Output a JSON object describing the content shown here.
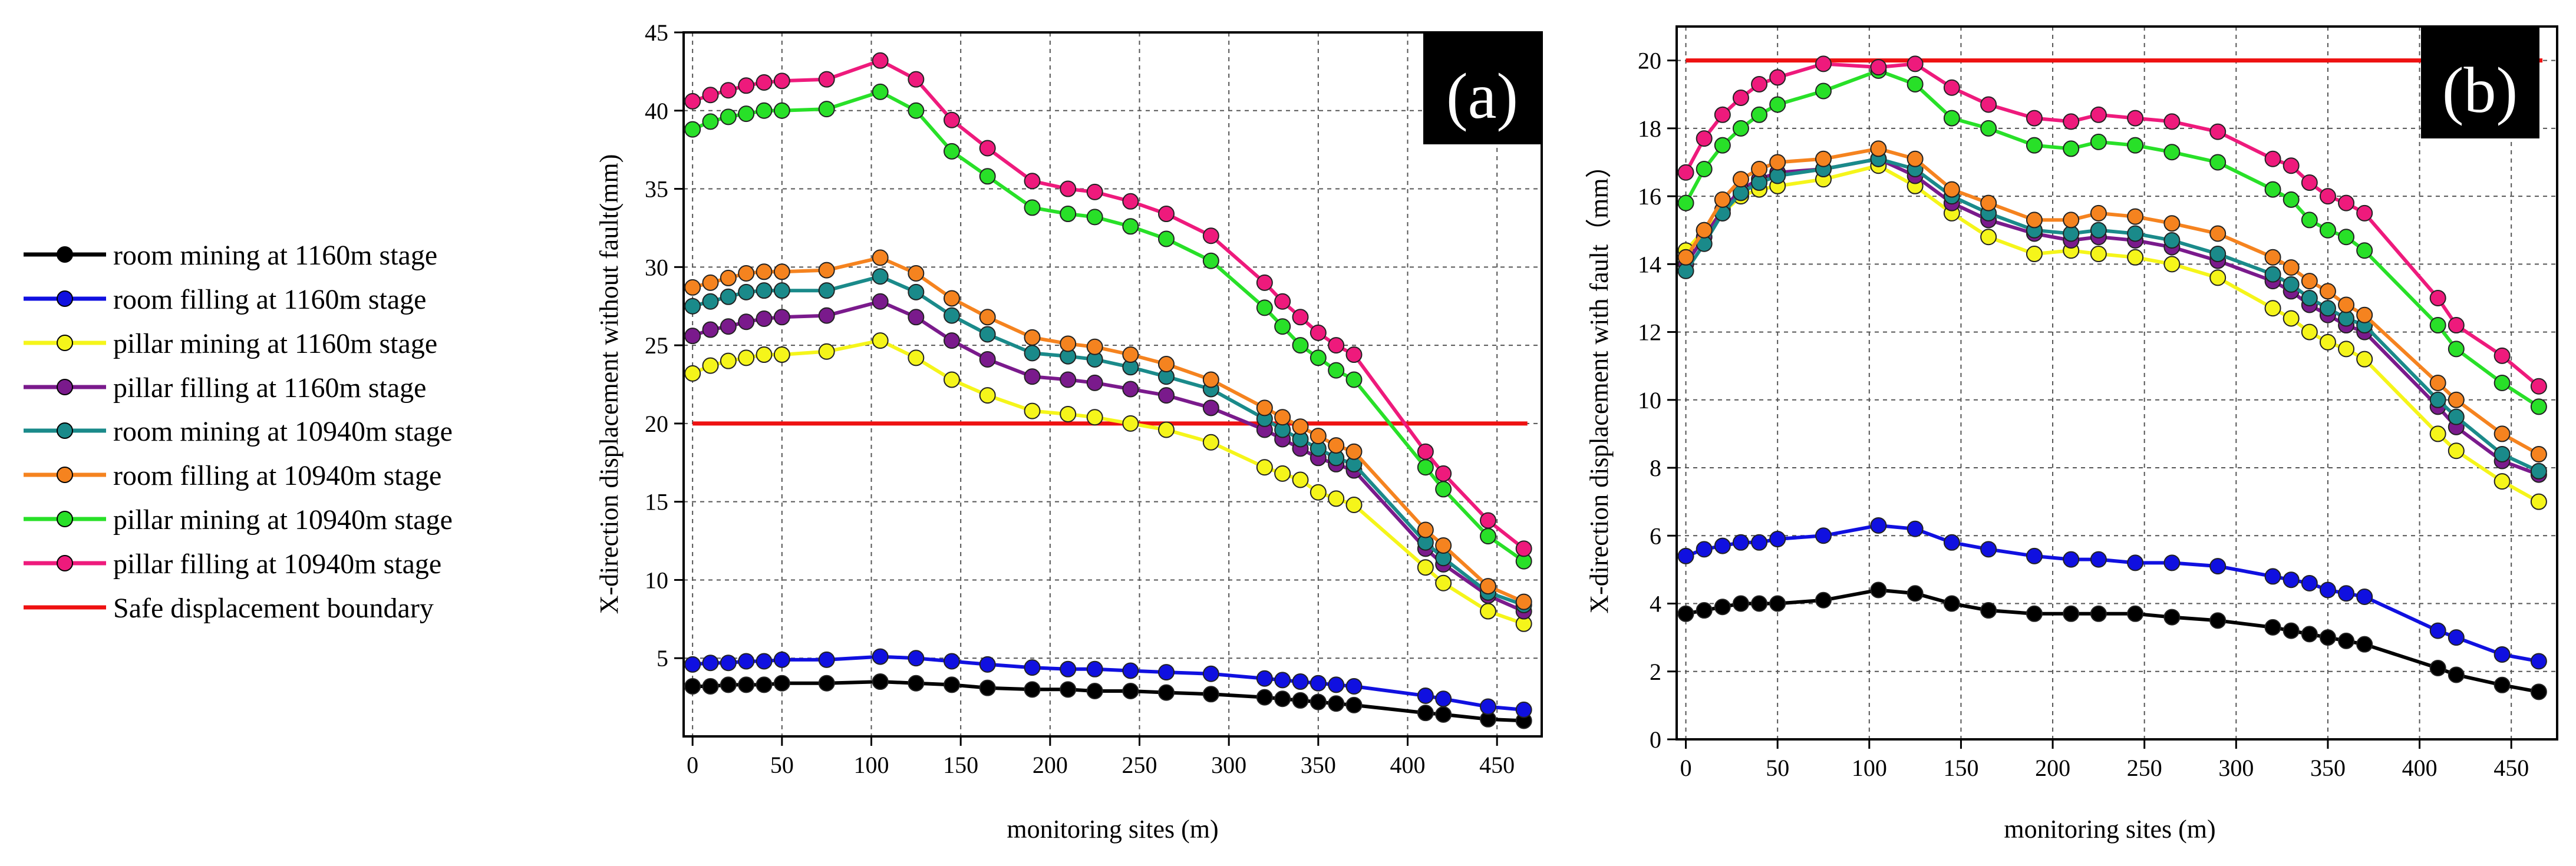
{
  "chart_data": [
    {
      "type": "line",
      "panel": "(a)",
      "xlabel": "monitoring sites (m)",
      "ylabel": "X-direction displacement without fault(mm)",
      "xlim": [
        -5,
        475
      ],
      "ylim": [
        0,
        45
      ],
      "xticks": [
        0,
        50,
        100,
        150,
        200,
        250,
        300,
        350,
        400,
        450
      ],
      "yticks": [
        5,
        10,
        15,
        20,
        25,
        30,
        35,
        40,
        45
      ],
      "grid": true,
      "x": [
        0,
        10,
        20,
        30,
        40,
        50,
        75,
        105,
        125,
        145,
        165,
        190,
        210,
        225,
        245,
        265,
        290,
        320,
        330,
        340,
        350,
        360,
        370,
        410,
        420,
        445,
        465
      ],
      "series": [
        {
          "name": "room mining at 1160m stage",
          "color": "#000000",
          "values": [
            3.2,
            3.2,
            3.3,
            3.3,
            3.3,
            3.4,
            3.4,
            3.5,
            3.4,
            3.3,
            3.1,
            3.0,
            3.0,
            2.9,
            2.9,
            2.8,
            2.7,
            2.5,
            2.4,
            2.3,
            2.2,
            2.1,
            2.0,
            1.5,
            1.4,
            1.1,
            1.0
          ]
        },
        {
          "name": "room filling at 1160m stage",
          "color": "#1010e0",
          "values": [
            4.6,
            4.7,
            4.7,
            4.8,
            4.8,
            4.9,
            4.9,
            5.1,
            5.0,
            4.8,
            4.6,
            4.4,
            4.3,
            4.3,
            4.2,
            4.1,
            4.0,
            3.7,
            3.6,
            3.5,
            3.4,
            3.3,
            3.2,
            2.6,
            2.4,
            1.9,
            1.7
          ]
        },
        {
          "name": "pillar mining at 1160m stage",
          "color": "#f5f51a",
          "values": [
            23.2,
            23.7,
            24.0,
            24.2,
            24.4,
            24.4,
            24.6,
            25.3,
            24.2,
            22.8,
            21.8,
            20.8,
            20.6,
            20.4,
            20.0,
            19.6,
            18.8,
            17.2,
            16.8,
            16.4,
            15.6,
            15.2,
            14.8,
            10.8,
            9.8,
            8.0,
            7.2
          ]
        },
        {
          "name": "pillar filling at 1160m stage",
          "color": "#7a1a8c",
          "values": [
            25.6,
            26.0,
            26.2,
            26.5,
            26.7,
            26.8,
            26.9,
            27.8,
            26.8,
            25.3,
            24.1,
            23.0,
            22.8,
            22.6,
            22.2,
            21.8,
            21.0,
            19.6,
            19.0,
            18.4,
            17.8,
            17.4,
            17.0,
            12.0,
            11.0,
            9.0,
            8.0
          ]
        },
        {
          "name": "room mining at 10940m stage",
          "color": "#1a8a8a",
          "values": [
            27.5,
            27.8,
            28.1,
            28.4,
            28.5,
            28.5,
            28.5,
            29.4,
            28.4,
            26.9,
            25.7,
            24.5,
            24.3,
            24.1,
            23.6,
            23.0,
            22.2,
            20.3,
            19.6,
            19.0,
            18.4,
            17.8,
            17.4,
            12.4,
            11.4,
            9.2,
            8.4
          ]
        },
        {
          "name": "room filling at 10940m stage",
          "color": "#f5831f",
          "values": [
            28.7,
            29.0,
            29.3,
            29.6,
            29.7,
            29.7,
            29.8,
            30.6,
            29.6,
            28.0,
            26.8,
            25.5,
            25.1,
            24.9,
            24.4,
            23.8,
            22.8,
            21.0,
            20.4,
            19.8,
            19.2,
            18.6,
            18.2,
            13.2,
            12.2,
            9.6,
            8.6
          ]
        },
        {
          "name": "pillar mining at 10940m stage",
          "color": "#28e028",
          "values": [
            38.8,
            39.3,
            39.6,
            39.8,
            40.0,
            40.0,
            40.1,
            41.2,
            40.0,
            37.4,
            35.8,
            33.8,
            33.4,
            33.2,
            32.6,
            31.8,
            30.4,
            27.4,
            26.2,
            25.0,
            24.2,
            23.4,
            22.8,
            17.2,
            15.8,
            12.8,
            11.2
          ]
        },
        {
          "name": "pillar filling at 10940m stage",
          "color": "#ee1a7c",
          "values": [
            40.6,
            41.0,
            41.3,
            41.6,
            41.8,
            41.9,
            42.0,
            43.2,
            42.0,
            39.4,
            37.6,
            35.5,
            35.0,
            34.8,
            34.2,
            33.4,
            32.0,
            29.0,
            27.8,
            26.8,
            25.8,
            25.0,
            24.4,
            18.2,
            16.8,
            13.8,
            12.0
          ]
        }
      ],
      "reference_line": {
        "name": "Safe displacement boundary",
        "color": "#ee1111",
        "y": 20,
        "x_from": 0,
        "x_to": 467
      }
    },
    {
      "type": "line",
      "panel": "(b)",
      "xlabel": "monitoring sites (m)",
      "ylabel": "X-direction displacement with fault（mm）",
      "xlim": [
        -5,
        475
      ],
      "ylim": [
        0,
        21
      ],
      "xticks": [
        0,
        50,
        100,
        150,
        200,
        250,
        300,
        350,
        400,
        450
      ],
      "yticks": [
        0,
        2,
        4,
        6,
        8,
        10,
        12,
        14,
        16,
        18,
        20
      ],
      "grid": true,
      "x": [
        0,
        10,
        20,
        30,
        40,
        50,
        75,
        105,
        125,
        145,
        165,
        190,
        210,
        225,
        245,
        265,
        290,
        320,
        330,
        340,
        350,
        360,
        370,
        410,
        420,
        445,
        465
      ],
      "series": [
        {
          "name": "room mining at 1160m stage",
          "color": "#000000",
          "values": [
            3.7,
            3.8,
            3.9,
            4.0,
            4.0,
            4.0,
            4.1,
            4.4,
            4.3,
            4.0,
            3.8,
            3.7,
            3.7,
            3.7,
            3.7,
            3.6,
            3.5,
            3.3,
            3.2,
            3.1,
            3.0,
            2.9,
            2.8,
            2.1,
            1.9,
            1.6,
            1.4
          ]
        },
        {
          "name": "room filling at 1160m stage",
          "color": "#1010e0",
          "values": [
            5.4,
            5.6,
            5.7,
            5.8,
            5.8,
            5.9,
            6.0,
            6.3,
            6.2,
            5.8,
            5.6,
            5.4,
            5.3,
            5.3,
            5.2,
            5.2,
            5.1,
            4.8,
            4.7,
            4.6,
            4.4,
            4.3,
            4.2,
            3.2,
            3.0,
            2.5,
            2.3
          ]
        },
        {
          "name": "pillar mining at 1160m stage",
          "color": "#f5f51a",
          "values": [
            14.4,
            15.0,
            15.5,
            16.0,
            16.2,
            16.3,
            16.5,
            16.9,
            16.3,
            15.5,
            14.8,
            14.3,
            14.4,
            14.3,
            14.2,
            14.0,
            13.6,
            12.7,
            12.4,
            12.0,
            11.7,
            11.5,
            11.2,
            9.0,
            8.5,
            7.6,
            7.0
          ]
        },
        {
          "name": "pillar filling at 1160m stage",
          "color": "#7a1a8c",
          "values": [
            14.0,
            14.8,
            15.6,
            16.2,
            16.5,
            16.7,
            16.8,
            17.1,
            16.6,
            15.8,
            15.3,
            14.9,
            14.7,
            14.8,
            14.7,
            14.5,
            14.1,
            13.5,
            13.2,
            12.8,
            12.5,
            12.2,
            12.0,
            9.8,
            9.2,
            8.2,
            7.8
          ]
        },
        {
          "name": "room mining at 10940m stage",
          "color": "#1a8a8a",
          "values": [
            13.8,
            14.6,
            15.5,
            16.1,
            16.4,
            16.6,
            16.8,
            17.1,
            16.8,
            16.0,
            15.5,
            15.0,
            14.9,
            15.0,
            14.9,
            14.7,
            14.3,
            13.7,
            13.4,
            13.0,
            12.7,
            12.4,
            12.2,
            10.0,
            9.5,
            8.4,
            7.9
          ]
        },
        {
          "name": "room filling at 10940m stage",
          "color": "#f5831f",
          "values": [
            14.2,
            15.0,
            15.9,
            16.5,
            16.8,
            17.0,
            17.1,
            17.4,
            17.1,
            16.2,
            15.8,
            15.3,
            15.3,
            15.5,
            15.4,
            15.2,
            14.9,
            14.2,
            13.9,
            13.5,
            13.2,
            12.8,
            12.5,
            10.5,
            10.0,
            9.0,
            8.4
          ]
        },
        {
          "name": "pillar mining at 10940m stage",
          "color": "#28e028",
          "values": [
            15.8,
            16.8,
            17.5,
            18.0,
            18.4,
            18.7,
            19.1,
            19.7,
            19.3,
            18.3,
            18.0,
            17.5,
            17.4,
            17.6,
            17.5,
            17.3,
            17.0,
            16.2,
            15.9,
            15.3,
            15.0,
            14.8,
            14.4,
            12.2,
            11.5,
            10.5,
            9.8
          ]
        },
        {
          "name": "pillar filling at 10940m stage",
          "color": "#ee1a7c",
          "values": [
            16.7,
            17.7,
            18.4,
            18.9,
            19.3,
            19.5,
            19.9,
            19.8,
            19.9,
            19.2,
            18.7,
            18.3,
            18.2,
            18.4,
            18.3,
            18.2,
            17.9,
            17.1,
            16.9,
            16.4,
            16.0,
            15.8,
            15.5,
            13.0,
            12.2,
            11.3,
            10.4
          ]
        }
      ],
      "reference_line": {
        "name": "Safe displacement boundary",
        "color": "#ee1111",
        "y": 20,
        "x_from": 0,
        "x_to": 467
      }
    }
  ],
  "legend": {
    "placement": "left",
    "items": [
      {
        "label": "room mining at 1160m stage",
        "color": "#000000",
        "marker": true
      },
      {
        "label": "room filling at 1160m stage",
        "color": "#1010e0",
        "marker": true
      },
      {
        "label": "pillar mining at 1160m stage",
        "color": "#f5f51a",
        "marker": true
      },
      {
        "label": "pillar filling at 1160m stage",
        "color": "#7a1a8c",
        "marker": true
      },
      {
        "label": "room mining at 10940m stage",
        "color": "#1a8a8a",
        "marker": true
      },
      {
        "label": "room filling at 10940m stage",
        "color": "#f5831f",
        "marker": true
      },
      {
        "label": "pillar mining at 10940m stage",
        "color": "#28e028",
        "marker": true
      },
      {
        "label": "pillar filling at 10940m stage",
        "color": "#ee1a7c",
        "marker": true
      },
      {
        "label": "Safe displacement boundary",
        "color": "#ee1111",
        "marker": false
      }
    ]
  }
}
